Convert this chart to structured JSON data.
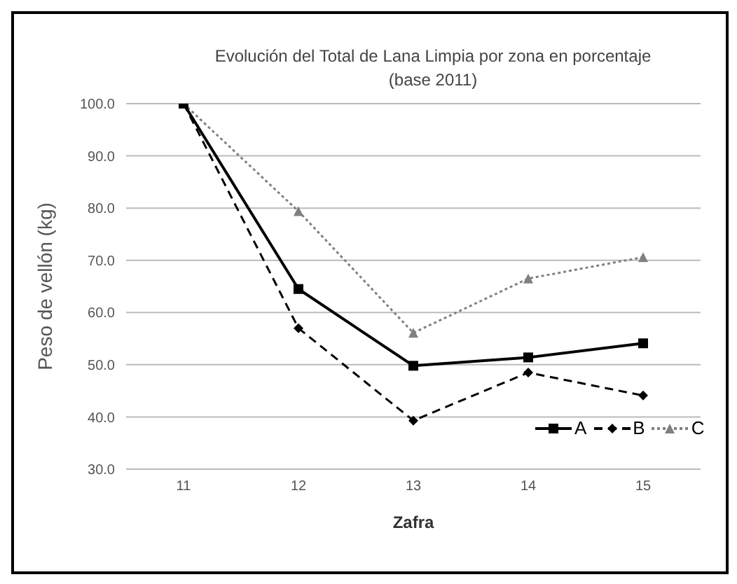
{
  "chart_data": {
    "type": "line",
    "title": "Evolución del Total de Lana Limpia por zona en porcentaje",
    "subtitle": "(base 2011)",
    "xlabel": "Zafra",
    "ylabel": "Peso de vellón (kg)",
    "categories": [
      "11",
      "12",
      "13",
      "14",
      "15"
    ],
    "series": [
      {
        "name": "A",
        "color": "#000000",
        "marker": "square",
        "line_style": "solid",
        "values": [
          100,
          64.5,
          49.8,
          51.4,
          54.1
        ]
      },
      {
        "name": "B",
        "color": "#000000",
        "marker": "diamond",
        "line_style": "dashed",
        "values": [
          100,
          57,
          39.3,
          48.5,
          44.1
        ]
      },
      {
        "name": "C",
        "color": "#808080",
        "marker": "triangle",
        "line_style": "dotted",
        "values": [
          100,
          79.4,
          56.1,
          66.5,
          70.6
        ]
      }
    ],
    "ylim": [
      30,
      100
    ],
    "yticks": [
      {
        "value": 30,
        "label": "30.0"
      },
      {
        "value": 40,
        "label": "40.0"
      },
      {
        "value": 50,
        "label": "50.0"
      },
      {
        "value": 60,
        "label": "60.0"
      },
      {
        "value": 70,
        "label": "70.0"
      },
      {
        "value": 80,
        "label": "80.0"
      },
      {
        "value": 90,
        "label": "90.0"
      },
      {
        "value": 100,
        "label": "100.0"
      }
    ],
    "grid": "y",
    "legend": "bottom right"
  }
}
